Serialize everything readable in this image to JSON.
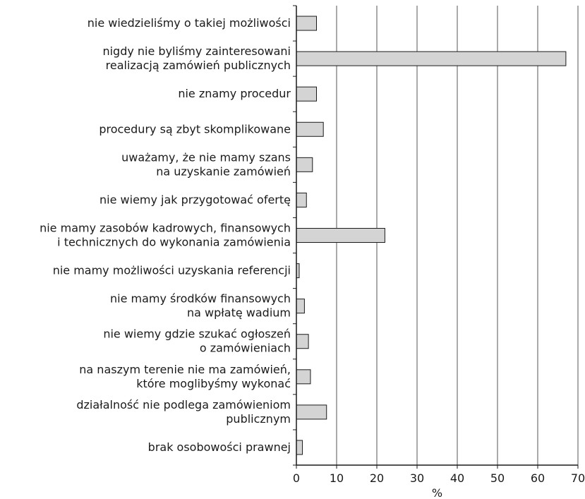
{
  "chart_data": {
    "type": "bar",
    "orientation": "horizontal",
    "categories": [
      [
        "nie wiedzieliśmy o takiej możliwości"
      ],
      [
        "nigdy nie byliśmy zainteresowani",
        "realizacją zamówień publicznych"
      ],
      [
        "nie znamy procedur"
      ],
      [
        "procedury są zbyt skomplikowane"
      ],
      [
        "uważamy, że nie mamy szans",
        "na uzyskanie zamówień"
      ],
      [
        "nie wiemy jak przygotować ofertę"
      ],
      [
        "nie mamy zasobów kadrowych, finansowych",
        "i technicznych do wykonania zamówienia"
      ],
      [
        "nie mamy możliwości uzyskania referencji"
      ],
      [
        "nie mamy środków finansowych",
        "na wpłatę wadium"
      ],
      [
        "nie wiemy gdzie szukać ogłoszeń",
        "o zamówieniach"
      ],
      [
        "na naszym terenie nie ma zamówień,",
        "które moglibyśmy wykonać"
      ],
      [
        "działalność nie podlega zamówieniom",
        "publicznym"
      ],
      [
        "brak osobowości prawnej"
      ]
    ],
    "values": [
      5.0,
      67.0,
      5.0,
      6.7,
      4.0,
      2.5,
      22.0,
      0.7,
      2.0,
      3.0,
      3.5,
      7.5,
      1.5
    ],
    "xlabel": "%",
    "xlim": [
      0,
      70
    ],
    "xticks": [
      "0",
      "10",
      "20",
      "30",
      "40",
      "50",
      "60",
      "70"
    ],
    "grid": "vertical",
    "colors": {
      "bar_fill": "#d4d4d4",
      "bar_stroke": "#1a1a1a",
      "grid": "#555555",
      "axis": "#1a1a1a"
    }
  }
}
